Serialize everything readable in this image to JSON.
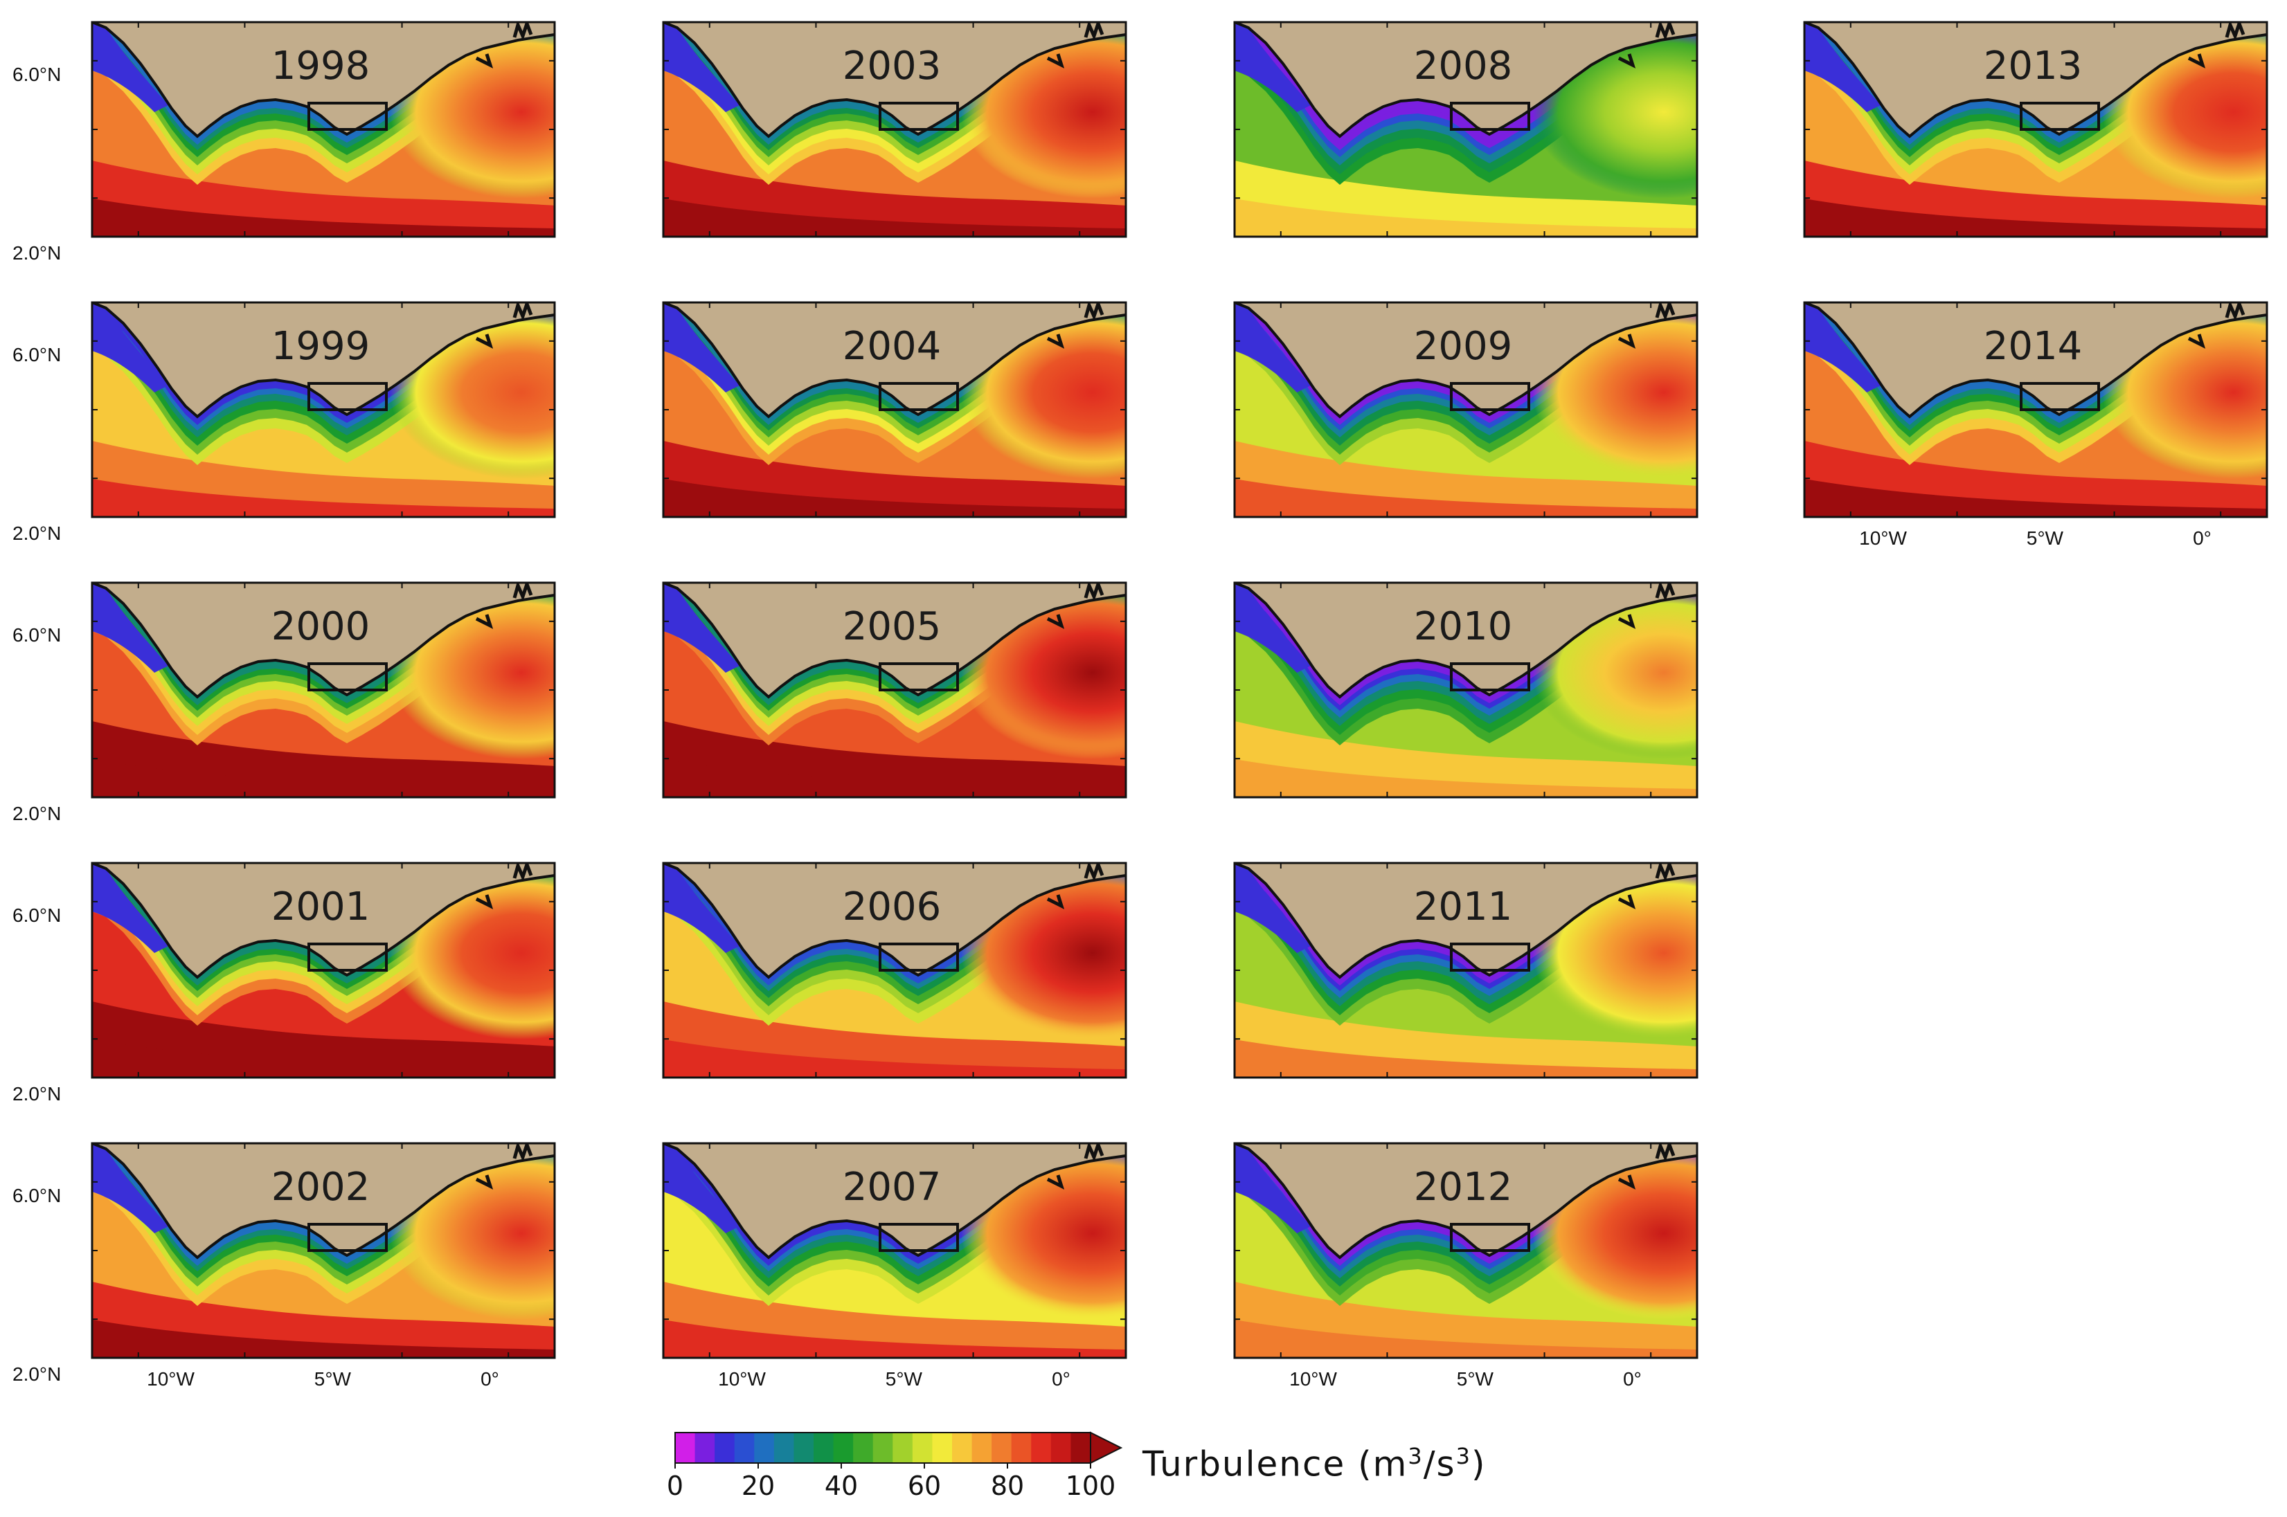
{
  "figure": {
    "colorbar": {
      "title": "Turbulence (m",
      "title_exp1": "3",
      "title_mid": "/s",
      "title_exp2": "3",
      "title_end": ")",
      "ticks": [
        "0",
        "20",
        "40",
        "60",
        "80",
        "100"
      ],
      "range": [
        0,
        100
      ],
      "colors": [
        "#d11fe8",
        "#7a1fe0",
        "#3a2fd8",
        "#2a4fd2",
        "#1f6fc0",
        "#17809a",
        "#128a70",
        "#119148",
        "#1a9b2e",
        "#3faa2a",
        "#6dbc2a",
        "#a2d12c",
        "#d2e232",
        "#f2ea3a",
        "#f7c83a",
        "#f5a233",
        "#f07c2e",
        "#ea5426",
        "#e02c20",
        "#c81a18",
        "#9c0c0e"
      ]
    },
    "axes": {
      "lat_ticks": [
        "6.0°N",
        "2.0°N"
      ],
      "lon_ticks": [
        "10°W",
        "5°W",
        "0°"
      ]
    },
    "panels": [
      {
        "year": "1998",
        "offshore": 78,
        "east": 88
      },
      {
        "year": "1999",
        "offshore": 68,
        "east": 86
      },
      {
        "year": "2000",
        "offshore": 84,
        "east": 90
      },
      {
        "year": "2001",
        "offshore": 88,
        "east": 92
      },
      {
        "year": "2002",
        "offshore": 76,
        "east": 88
      },
      {
        "year": "2003",
        "offshore": 80,
        "east": 94
      },
      {
        "year": "2004",
        "offshore": 82,
        "east": 92
      },
      {
        "year": "2005",
        "offshore": 86,
        "east": 98
      },
      {
        "year": "2006",
        "offshore": 70,
        "east": 100
      },
      {
        "year": "2007",
        "offshore": 66,
        "east": 94
      },
      {
        "year": "2008",
        "offshore": 50,
        "east": 64
      },
      {
        "year": "2009",
        "offshore": 62,
        "east": 88
      },
      {
        "year": "2010",
        "offshore": 54,
        "east": 80
      },
      {
        "year": "2011",
        "offshore": 56,
        "east": 84
      },
      {
        "year": "2012",
        "offshore": 60,
        "east": 94
      },
      {
        "year": "2013",
        "offshore": 76,
        "east": 92
      },
      {
        "year": "2014",
        "offshore": 78,
        "east": 90
      }
    ]
  }
}
